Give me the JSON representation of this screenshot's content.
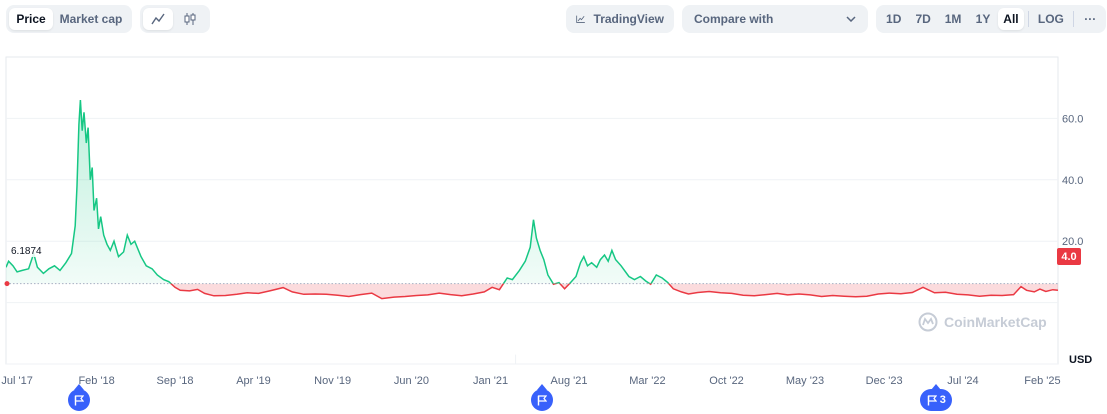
{
  "toolbar": {
    "metric_tabs": [
      {
        "label": "Price",
        "active": true
      },
      {
        "label": "Market cap",
        "active": false
      }
    ],
    "chart_style_icons": [
      {
        "icon": "line-chart-icon",
        "active": true
      },
      {
        "icon": "candlestick-icon",
        "active": false
      }
    ],
    "tradingview_label": "TradingView",
    "compare_label": "Compare with",
    "ranges": [
      {
        "label": "1D",
        "active": false
      },
      {
        "label": "7D",
        "active": false
      },
      {
        "label": "1M",
        "active": false
      },
      {
        "label": "1Y",
        "active": false
      },
      {
        "label": "All",
        "active": true
      }
    ],
    "log_label": "LOG",
    "more_label": "···"
  },
  "colors": {
    "up": "#16c784",
    "down": "#ea3943",
    "accent": "#3861fb"
  },
  "watermark": "CoinMarketCap",
  "currency_label": "USD",
  "reference_price_label": "6.1874",
  "current_price_label": "4.0",
  "event_markers": [
    {
      "date": "2017-12-15",
      "label": ""
    },
    {
      "date": "2021-05-20",
      "label": ""
    },
    {
      "date": "2024-04-20",
      "label": "3"
    }
  ],
  "chart_data": {
    "type": "line",
    "title": "",
    "xlabel": "",
    "ylabel": "USD",
    "baseline": 6.1874,
    "y_ticks": [
      20,
      40,
      60
    ],
    "y_tick_labels": [
      "20.0",
      "40.0",
      "60.0"
    ],
    "ylim": [
      -20,
      80
    ],
    "x_ticks": [
      "Jul '17",
      "Feb '18",
      "Sep '18",
      "Apr '19",
      "Nov '19",
      "Jun '20",
      "Jan '21",
      "Aug '21",
      "Mar '22",
      "Oct '22",
      "May '23",
      "Dec '23",
      "Jul '24",
      "Feb '25"
    ],
    "x_tick_dates": [
      "2017-07-01",
      "2018-02-01",
      "2018-09-01",
      "2019-04-01",
      "2019-11-01",
      "2020-06-01",
      "2021-01-01",
      "2021-08-01",
      "2022-03-01",
      "2022-10-01",
      "2023-05-01",
      "2023-12-01",
      "2024-07-01",
      "2025-02-01"
    ],
    "x_range": [
      "2017-06-01",
      "2025-03-15"
    ],
    "series": [
      {
        "values": [
          [
            "2017-06-01",
            11.5
          ],
          [
            "2017-06-08",
            13.5
          ],
          [
            "2017-06-20",
            12.0
          ],
          [
            "2017-07-01",
            10.0
          ],
          [
            "2017-07-15",
            10.5
          ],
          [
            "2017-08-01",
            11.0
          ],
          [
            "2017-08-15",
            16.0
          ],
          [
            "2017-08-25",
            11.5
          ],
          [
            "2017-09-10",
            9.5
          ],
          [
            "2017-09-25",
            11.0
          ],
          [
            "2017-10-10",
            12.0
          ],
          [
            "2017-10-25",
            10.5
          ],
          [
            "2017-11-10",
            13.0
          ],
          [
            "2017-11-25",
            16.0
          ],
          [
            "2017-12-05",
            25.0
          ],
          [
            "2017-12-10",
            38.0
          ],
          [
            "2017-12-15",
            58.0
          ],
          [
            "2017-12-19",
            66.0
          ],
          [
            "2017-12-24",
            56.0
          ],
          [
            "2017-12-29",
            62.0
          ],
          [
            "2018-01-04",
            52.0
          ],
          [
            "2018-01-09",
            57.0
          ],
          [
            "2018-01-15",
            40.0
          ],
          [
            "2018-01-20",
            44.0
          ],
          [
            "2018-01-25",
            30.0
          ],
          [
            "2018-02-01",
            34.0
          ],
          [
            "2018-02-06",
            24.0
          ],
          [
            "2018-02-12",
            28.0
          ],
          [
            "2018-02-20",
            22.0
          ],
          [
            "2018-03-01",
            19.0
          ],
          [
            "2018-03-10",
            17.0
          ],
          [
            "2018-03-20",
            20.0
          ],
          [
            "2018-04-01",
            15.0
          ],
          [
            "2018-04-15",
            16.5
          ],
          [
            "2018-04-25",
            22.0
          ],
          [
            "2018-05-05",
            19.0
          ],
          [
            "2018-05-15",
            20.0
          ],
          [
            "2018-06-01",
            15.0
          ],
          [
            "2018-06-15",
            12.0
          ],
          [
            "2018-07-01",
            11.0
          ],
          [
            "2018-07-15",
            9.0
          ],
          [
            "2018-08-01",
            7.5
          ],
          [
            "2018-08-15",
            6.8
          ],
          [
            "2018-09-01",
            5.0
          ],
          [
            "2018-09-15",
            4.0
          ],
          [
            "2018-10-10",
            3.8
          ],
          [
            "2018-11-01",
            4.3
          ],
          [
            "2018-11-20",
            3.0
          ],
          [
            "2018-12-15",
            2.2
          ],
          [
            "2019-01-15",
            2.3
          ],
          [
            "2019-02-15",
            2.7
          ],
          [
            "2019-03-15",
            3.2
          ],
          [
            "2019-04-15",
            3.0
          ],
          [
            "2019-05-15",
            3.8
          ],
          [
            "2019-06-20",
            4.9
          ],
          [
            "2019-07-15",
            3.5
          ],
          [
            "2019-08-15",
            2.7
          ],
          [
            "2019-09-15",
            2.8
          ],
          [
            "2019-10-15",
            2.7
          ],
          [
            "2019-11-15",
            2.4
          ],
          [
            "2019-12-15",
            2.0
          ],
          [
            "2020-01-15",
            2.6
          ],
          [
            "2020-02-15",
            3.1
          ],
          [
            "2020-03-13",
            1.3
          ],
          [
            "2020-04-15",
            1.8
          ],
          [
            "2020-05-15",
            2.0
          ],
          [
            "2020-06-15",
            2.3
          ],
          [
            "2020-07-15",
            2.5
          ],
          [
            "2020-08-15",
            3.1
          ],
          [
            "2020-09-15",
            2.6
          ],
          [
            "2020-10-15",
            2.2
          ],
          [
            "2020-11-15",
            2.8
          ],
          [
            "2020-12-15",
            3.5
          ],
          [
            "2021-01-05",
            5.0
          ],
          [
            "2021-01-25",
            4.2
          ],
          [
            "2021-02-15",
            8.0
          ],
          [
            "2021-03-01",
            7.5
          ],
          [
            "2021-03-20",
            10.5
          ],
          [
            "2021-04-05",
            13.5
          ],
          [
            "2021-04-18",
            18.0
          ],
          [
            "2021-04-27",
            27.0
          ],
          [
            "2021-05-05",
            21.0
          ],
          [
            "2021-05-15",
            17.0
          ],
          [
            "2021-05-25",
            14.0
          ],
          [
            "2021-06-05",
            9.0
          ],
          [
            "2021-06-20",
            6.0
          ],
          [
            "2021-07-05",
            6.5
          ],
          [
            "2021-07-20",
            4.5
          ],
          [
            "2021-08-05",
            6.5
          ],
          [
            "2021-08-20",
            8.5
          ],
          [
            "2021-09-01",
            13.0
          ],
          [
            "2021-09-10",
            15.0
          ],
          [
            "2021-09-20",
            12.0
          ],
          [
            "2021-10-01",
            13.0
          ],
          [
            "2021-10-15",
            11.5
          ],
          [
            "2021-10-25",
            14.0
          ],
          [
            "2021-11-05",
            15.5
          ],
          [
            "2021-11-15",
            13.5
          ],
          [
            "2021-11-25",
            17.0
          ],
          [
            "2021-12-05",
            14.0
          ],
          [
            "2021-12-20",
            12.0
          ],
          [
            "2022-01-10",
            8.5
          ],
          [
            "2022-01-25",
            7.5
          ],
          [
            "2022-02-10",
            8.5
          ],
          [
            "2022-02-25",
            7.0
          ],
          [
            "2022-03-10",
            6.0
          ],
          [
            "2022-03-25",
            9.0
          ],
          [
            "2022-04-10",
            8.0
          ],
          [
            "2022-04-25",
            6.5
          ],
          [
            "2022-05-10",
            4.5
          ],
          [
            "2022-06-01",
            3.5
          ],
          [
            "2022-06-20",
            2.8
          ],
          [
            "2022-07-15",
            3.3
          ],
          [
            "2022-08-15",
            3.6
          ],
          [
            "2022-09-15",
            3.2
          ],
          [
            "2022-10-15",
            3.0
          ],
          [
            "2022-11-15",
            2.4
          ],
          [
            "2022-12-15",
            2.2
          ],
          [
            "2023-01-15",
            2.6
          ],
          [
            "2023-02-15",
            3.0
          ],
          [
            "2023-03-15",
            2.5
          ],
          [
            "2023-04-15",
            2.8
          ],
          [
            "2023-05-15",
            2.5
          ],
          [
            "2023-06-15",
            2.0
          ],
          [
            "2023-07-15",
            2.3
          ],
          [
            "2023-08-15",
            2.1
          ],
          [
            "2023-09-15",
            1.9
          ],
          [
            "2023-10-15",
            2.1
          ],
          [
            "2023-11-15",
            2.8
          ],
          [
            "2023-12-15",
            3.1
          ],
          [
            "2024-01-15",
            2.9
          ],
          [
            "2024-02-15",
            3.3
          ],
          [
            "2024-03-15",
            5.0
          ],
          [
            "2024-04-15",
            3.2
          ],
          [
            "2024-05-15",
            3.4
          ],
          [
            "2024-06-15",
            2.7
          ],
          [
            "2024-07-15",
            2.5
          ],
          [
            "2024-08-15",
            2.1
          ],
          [
            "2024-09-15",
            2.4
          ],
          [
            "2024-10-15",
            2.3
          ],
          [
            "2024-11-15",
            2.6
          ],
          [
            "2024-12-05",
            5.2
          ],
          [
            "2024-12-20",
            4.0
          ],
          [
            "2025-01-10",
            3.5
          ],
          [
            "2025-01-25",
            4.4
          ],
          [
            "2025-02-10",
            3.6
          ],
          [
            "2025-03-01",
            4.2
          ],
          [
            "2025-03-15",
            4.0
          ]
        ]
      }
    ],
    "grid": true,
    "legend": "none"
  }
}
